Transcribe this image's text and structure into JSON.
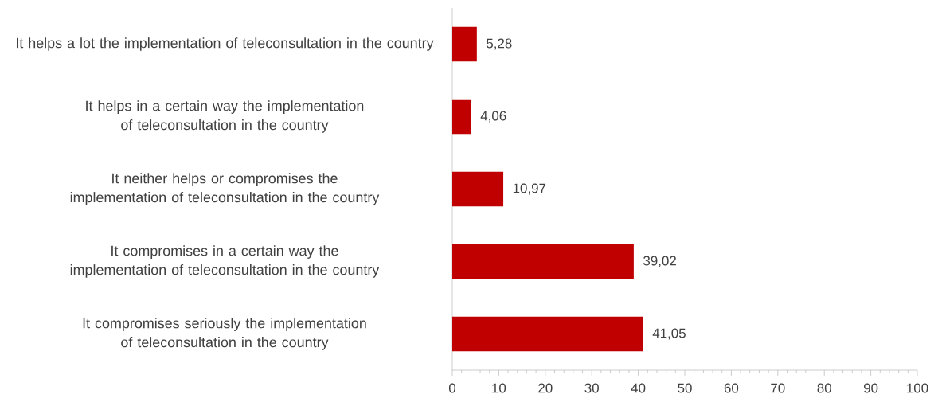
{
  "chart_data": {
    "type": "bar",
    "orientation": "horizontal",
    "categories": [
      "It helps a lot the implementation of teleconsultation in the country",
      "It helps in a certain way the implementation of teleconsultation in the country",
      "It neither helps or compromises the implementation of teleconsultation in the country",
      "It compromises in a certain way the implementation of teleconsultation in the country",
      "It compromises seriously the implementation of teleconsultation in the country"
    ],
    "values": [
      5.28,
      4.06,
      10.97,
      39.02,
      41.05
    ],
    "value_labels": [
      "5,28",
      "4,06",
      "10,97",
      "39,02",
      "41,05"
    ],
    "color": "#c00000",
    "xlim": [
      0,
      100
    ],
    "xticks": [
      0,
      10,
      20,
      30,
      40,
      50,
      60,
      70,
      80,
      90,
      100
    ],
    "grid": false
  }
}
